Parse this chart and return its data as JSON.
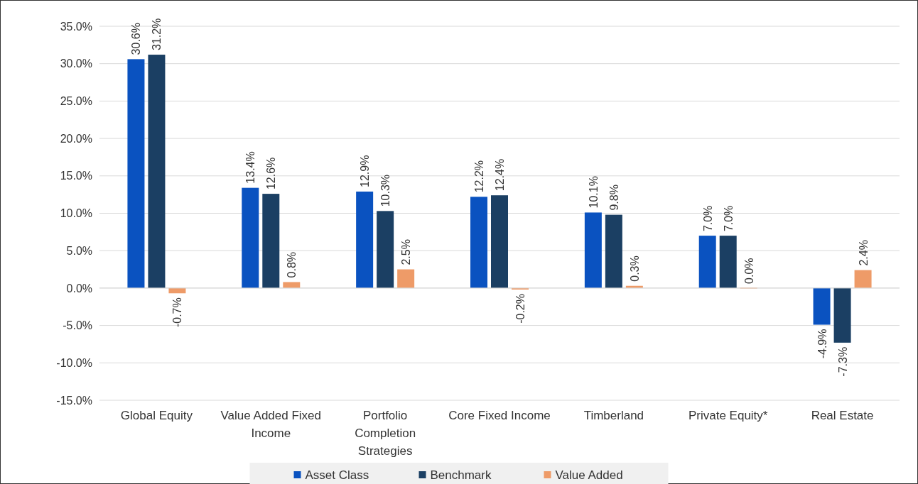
{
  "chart_data": {
    "type": "bar",
    "categories": [
      "Global Equity",
      "Value Added Fixed Income",
      "Portfolio Completion Strategies",
      "Core Fixed Income",
      "Timberland",
      "Private Equity*",
      "Real Estate"
    ],
    "series": [
      {
        "name": "Asset Class",
        "color": "#0a52c0",
        "values": [
          30.6,
          13.4,
          12.9,
          12.2,
          10.1,
          7.0,
          -4.9
        ],
        "value_labels": [
          "30.6%",
          "13.4%",
          "12.9%",
          "12.2%",
          "10.1%",
          "7.0%",
          "-4.9%"
        ]
      },
      {
        "name": "Benchmark",
        "color": "#1b3f63",
        "values": [
          31.2,
          12.6,
          10.3,
          12.4,
          9.8,
          7.0,
          -7.3
        ],
        "value_labels": [
          "31.2%",
          "12.6%",
          "10.3%",
          "12.4%",
          "9.8%",
          "7.0%",
          "-7.3%"
        ]
      },
      {
        "name": "Value Added",
        "color": "#ee9b68",
        "values": [
          -0.7,
          0.8,
          2.5,
          -0.2,
          0.3,
          0.0,
          2.4
        ],
        "value_labels": [
          "-0.7%",
          "0.8%",
          "2.5%",
          "-0.2%",
          "0.3%",
          "0.0%",
          "2.4%"
        ]
      }
    ],
    "ylim": [
      -15,
      35
    ],
    "yticks": [
      {
        "value": -15,
        "label": "-15.0%"
      },
      {
        "value": -10,
        "label": "-10.0%"
      },
      {
        "value": -5,
        "label": "-5.0%"
      },
      {
        "value": 0,
        "label": "0.0%"
      },
      {
        "value": 5,
        "label": "5.0%"
      },
      {
        "value": 10,
        "label": "10.0%"
      },
      {
        "value": 15,
        "label": "15.0%"
      },
      {
        "value": 20,
        "label": "20.0%"
      },
      {
        "value": 25,
        "label": "25.0%"
      },
      {
        "value": 30,
        "label": "30.0%"
      },
      {
        "value": 35,
        "label": "35.0%"
      }
    ],
    "grid": "y",
    "legend": "bottom"
  }
}
